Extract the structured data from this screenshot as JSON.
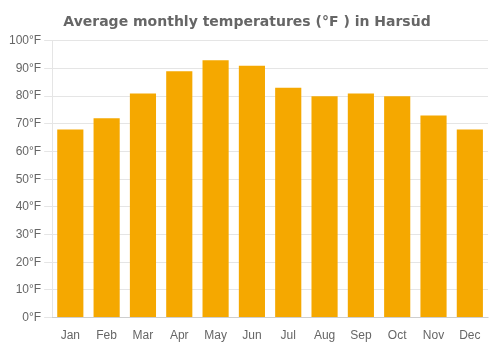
{
  "chart_data": {
    "type": "bar",
    "title": "Average monthly temperatures (°F ) in Harsūd",
    "categories": [
      "Jan",
      "Feb",
      "Mar",
      "Apr",
      "May",
      "Jun",
      "Jul",
      "Aug",
      "Sep",
      "Oct",
      "Nov",
      "Dec"
    ],
    "values": [
      68,
      72,
      81,
      89,
      93,
      91,
      83,
      80,
      81,
      80,
      73,
      68
    ],
    "color": "#F5A800",
    "ylim": [
      0,
      100
    ],
    "yticks": [
      {
        "value": 0,
        "label": "0°F"
      },
      {
        "value": 10,
        "label": "10°F"
      },
      {
        "value": 20,
        "label": "20°F"
      },
      {
        "value": 30,
        "label": "30°F"
      },
      {
        "value": 40,
        "label": "40°F"
      },
      {
        "value": 50,
        "label": "50°F"
      },
      {
        "value": 60,
        "label": "60°F"
      },
      {
        "value": 70,
        "label": "70°F"
      },
      {
        "value": 80,
        "label": "80°F"
      },
      {
        "value": 90,
        "label": "90°F"
      },
      {
        "value": 100,
        "label": "100°F"
      }
    ],
    "grid": true
  }
}
